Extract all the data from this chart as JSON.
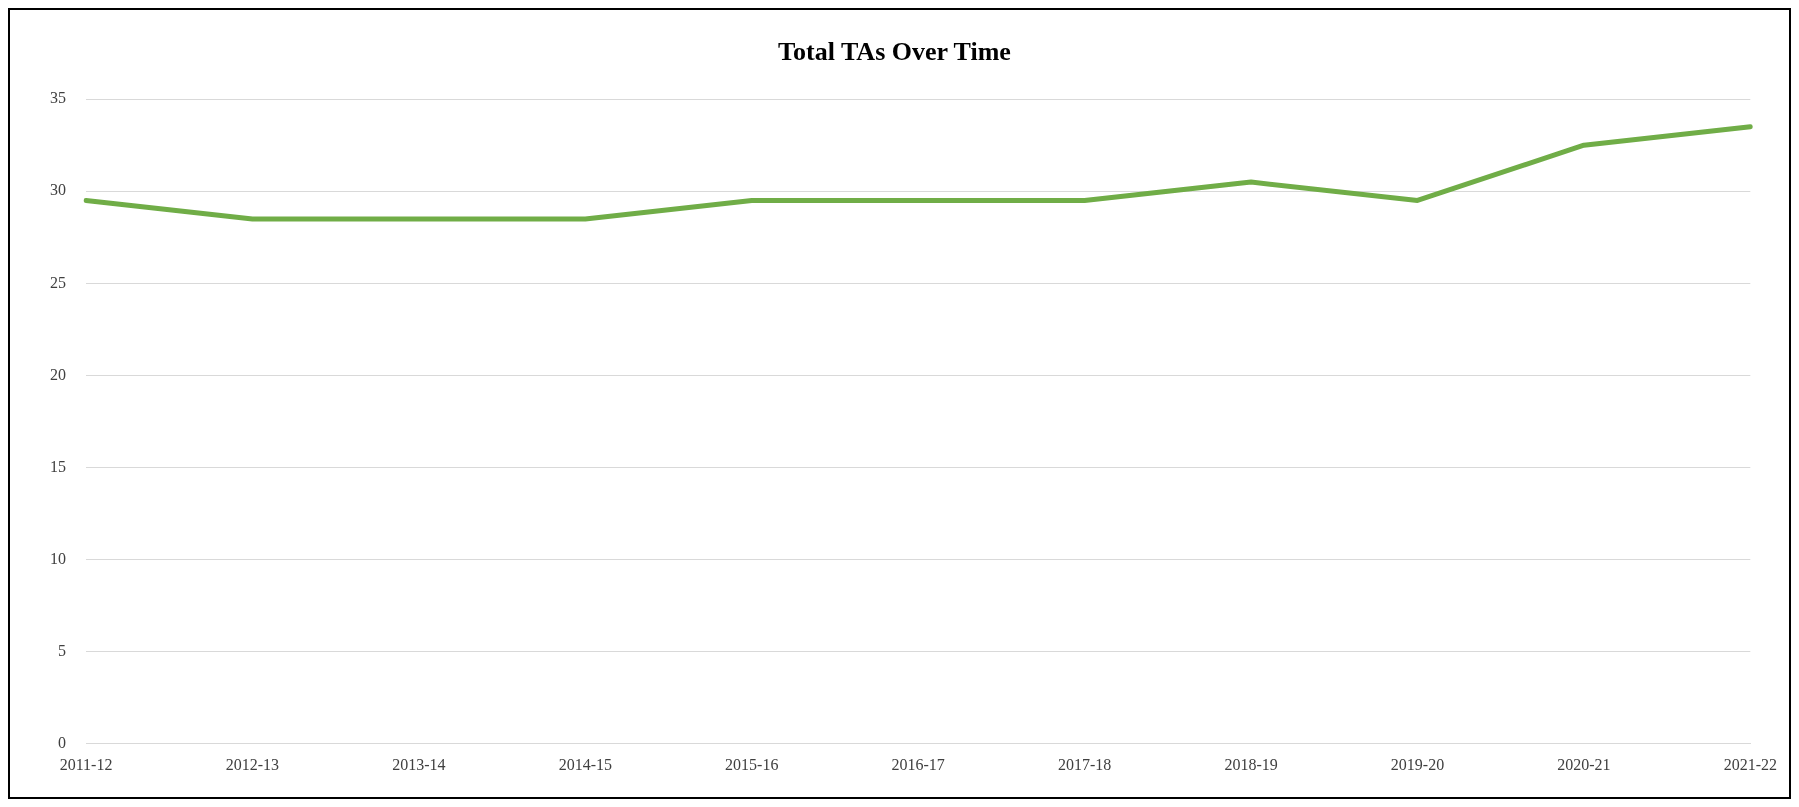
{
  "chart_data": {
    "type": "line",
    "title": "Total TAs Over Time",
    "categories": [
      "2011-12",
      "2012-13",
      "2013-14",
      "2014-15",
      "2015-16",
      "2016-17",
      "2017-18",
      "2018-19",
      "2019-20",
      "2020-21",
      "2021-22"
    ],
    "series": [
      {
        "color": "#70ad47",
        "values": [
          29.5,
          28.5,
          28.5,
          28.5,
          29.5,
          29.5,
          29.5,
          30.5,
          29.5,
          32.5,
          33.5
        ]
      }
    ],
    "ylim": [
      0,
      35
    ],
    "yticks": [
      0,
      5,
      10,
      15,
      20,
      25,
      30,
      35
    ],
    "grid": "y",
    "legend": false,
    "marker": "none",
    "line_style": "solid"
  }
}
